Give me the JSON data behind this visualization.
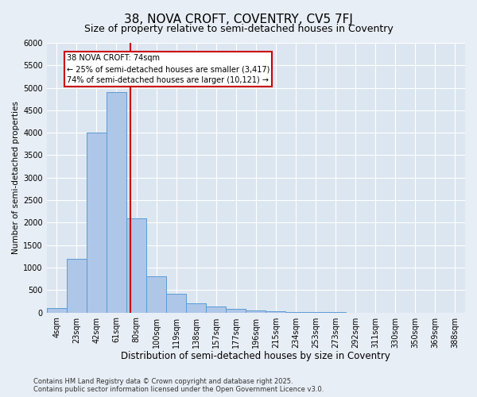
{
  "title": "38, NOVA CROFT, COVENTRY, CV5 7FJ",
  "subtitle": "Size of property relative to semi-detached houses in Coventry",
  "xlabel": "Distribution of semi-detached houses by size in Coventry",
  "ylabel": "Number of semi-detached properties",
  "categories": [
    "4sqm",
    "23sqm",
    "42sqm",
    "61sqm",
    "80sqm",
    "100sqm",
    "119sqm",
    "138sqm",
    "157sqm",
    "177sqm",
    "196sqm",
    "215sqm",
    "234sqm",
    "253sqm",
    "273sqm",
    "292sqm",
    "311sqm",
    "330sqm",
    "350sqm",
    "369sqm",
    "388sqm"
  ],
  "values": [
    100,
    1200,
    4000,
    4900,
    2100,
    800,
    420,
    200,
    130,
    80,
    50,
    30,
    15,
    5,
    2,
    1,
    0,
    0,
    0,
    0,
    0
  ],
  "bar_color": "#aec6e8",
  "bar_edge_color": "#5b9bd5",
  "annotation_text": "38 NOVA CROFT: 74sqm\n← 25% of semi-detached houses are smaller (3,417)\n74% of semi-detached houses are larger (10,121) →",
  "annotation_box_color": "#ffffff",
  "annotation_box_edge": "#cc0000",
  "vline_color": "#cc0000",
  "vline_x": 3.68,
  "ylim": [
    0,
    6000
  ],
  "yticks": [
    0,
    500,
    1000,
    1500,
    2000,
    2500,
    3000,
    3500,
    4000,
    4500,
    5000,
    5500,
    6000
  ],
  "bg_color": "#e8eef5",
  "plot_bg_color": "#dce6f0",
  "grid_color": "#ffffff",
  "footer": "Contains HM Land Registry data © Crown copyright and database right 2025.\nContains public sector information licensed under the Open Government Licence v3.0.",
  "title_fontsize": 11,
  "subtitle_fontsize": 9,
  "xlabel_fontsize": 8.5,
  "ylabel_fontsize": 7.5,
  "tick_fontsize": 7,
  "annotation_fontsize": 7,
  "footer_fontsize": 6
}
